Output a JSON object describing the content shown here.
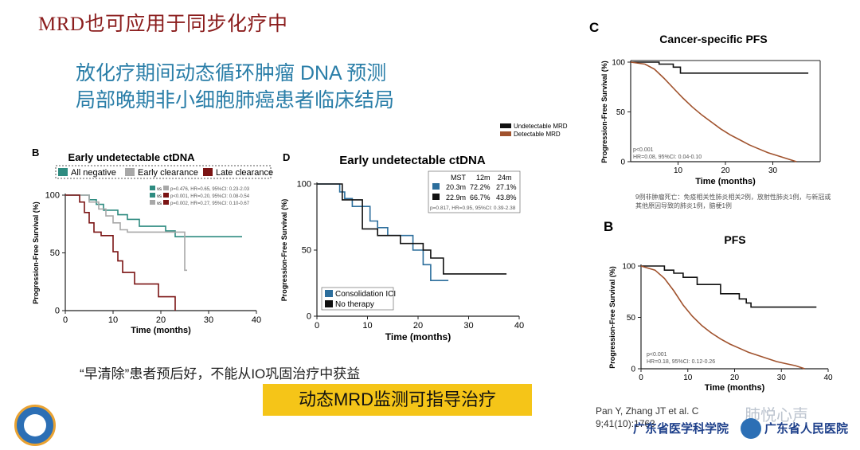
{
  "slide": {
    "title": "MRD也可应用于同步化疗中",
    "headline_line1": "放化疗期间动态循环肿瘤 DNA 预测",
    "headline_line2": "局部晚期非小细胞肺癌患者临床结局",
    "conclusion": "“早清除”患者预后好，不能从IO巩固治疗中获益",
    "highlight": "动态MRD监测可指导治疗",
    "citation_line1": "Pan Y, Zhang JT et al. C",
    "citation_line2": "9;41(10):1763",
    "academy_name": "广东省医学科学院",
    "hospital_name": "广东省人民医院",
    "watermark": "肺悦心声",
    "accent_color": "#2a7ea8",
    "highlight_color": "#f5c518"
  },
  "chart_data": [
    {
      "panel": "B",
      "type": "line",
      "title": "Early undetectable ctDNA",
      "xlabel": "Time (months)",
      "ylabel": "Progression-Free Survival (%)",
      "xlim": [
        0,
        40
      ],
      "ylim": [
        0,
        100
      ],
      "xticks": [
        "0",
        "10",
        "20",
        "30",
        "40"
      ],
      "yticks": [
        "0",
        "50",
        "100"
      ],
      "legend_position": "top",
      "stats": [
        {
          "vs": "vs",
          "text": "p=0.476, HR=0.65, 95%CI: 0.23-2.03",
          "color": "#2e8b80"
        },
        {
          "vs": "vs",
          "text": "p<0.001, HR=0.20, 95%CI: 0.08-0.54",
          "color": "#7b1414"
        },
        {
          "vs": "vs",
          "text": "p=0.002, HR=0.27, 95%CI: 0.10-0.67",
          "color": "#7b1414"
        }
      ],
      "series": [
        {
          "name": "All negative",
          "color": "#2e8b80",
          "x": [
            0,
            5,
            5,
            6.5,
            6.5,
            8,
            8,
            11,
            11,
            13,
            13,
            15.5,
            15.5,
            21,
            21,
            23,
            23,
            37
          ],
          "y": [
            100,
            100,
            96,
            96,
            92,
            92,
            87,
            87,
            83,
            83,
            79,
            79,
            73,
            73,
            69,
            69,
            64,
            64
          ]
        },
        {
          "name": "Early clearance",
          "color": "#a8a8a8",
          "x": [
            0,
            5,
            5,
            7,
            7,
            8.5,
            8.5,
            10,
            10,
            11.5,
            11.5,
            13,
            13,
            20,
            20,
            25,
            25,
            25.5
          ],
          "y": [
            100,
            100,
            94,
            94,
            88,
            88,
            82,
            82,
            76,
            76,
            70,
            70,
            68,
            68,
            68,
            68,
            35,
            35
          ]
        },
        {
          "name": "Late clearance",
          "color": "#7b1414",
          "x": [
            0,
            3,
            3,
            4,
            4,
            5,
            5,
            6,
            6,
            7.5,
            7.5,
            10,
            10,
            11,
            11,
            12,
            12,
            14.5,
            14.5,
            19.5,
            19.5,
            23,
            23
          ],
          "y": [
            100,
            100,
            94,
            94,
            85,
            85,
            76,
            76,
            68,
            68,
            65,
            65,
            51,
            51,
            43,
            43,
            33,
            33,
            23,
            23,
            12,
            12,
            0
          ]
        }
      ]
    },
    {
      "panel": "D",
      "type": "line",
      "title": "Early undetectable ctDNA",
      "xlabel": "Time (months)",
      "ylabel": "Progression-Free Survival (%)",
      "xlim": [
        0,
        40
      ],
      "ylim": [
        0,
        100
      ],
      "xticks": [
        "0",
        "10",
        "20",
        "30",
        "40"
      ],
      "yticks": [
        "0",
        "50",
        "100"
      ],
      "legend_position": "bottom-left",
      "table_header": [
        "MST",
        "12m",
        "24m"
      ],
      "table_rows": [
        {
          "color": "#2c6e9c",
          "values": [
            "20.3m",
            "72.2%",
            "27.1%"
          ]
        },
        {
          "color": "#111111",
          "values": [
            "22.9m",
            "66.7%",
            "43.8%"
          ]
        }
      ],
      "table_footer": "p=0.817, HR=0.95, 95%CI: 0.39-2.38",
      "series": [
        {
          "name": "Consolidation ICI",
          "color": "#2c6e9c",
          "x": [
            0,
            4.5,
            4.5,
            5.5,
            5.5,
            7,
            7,
            10.5,
            10.5,
            12,
            12,
            14,
            14,
            19,
            19,
            21,
            21,
            22.5,
            22.5,
            26
          ],
          "y": [
            100,
            100,
            94,
            94,
            89,
            89,
            83,
            83,
            72,
            72,
            67,
            67,
            61,
            61,
            50,
            50,
            39,
            39,
            27,
            27
          ]
        },
        {
          "name": "No therapy",
          "color": "#111111",
          "x": [
            0,
            5,
            5,
            9,
            9,
            12,
            12,
            16.5,
            16.5,
            21,
            21,
            22.5,
            22.5,
            25,
            25,
            37.5
          ],
          "y": [
            100,
            100,
            88,
            88,
            66,
            66,
            61,
            61,
            55,
            55,
            50,
            50,
            44,
            44,
            32,
            32
          ]
        }
      ]
    },
    {
      "panel": "C",
      "type": "line",
      "title": "Cancer-specific PFS",
      "xlabel": "Time (months)",
      "ylabel": "Progression-Free Survival (%)",
      "xlim": [
        0,
        40
      ],
      "ylim": [
        0,
        100
      ],
      "xticks": [
        "10",
        "20",
        "30"
      ],
      "yticks": [
        "0",
        "50",
        "100"
      ],
      "legend_position": "right",
      "stats_text": [
        "p<0.001",
        "HR=0.08, 95%CI: 0.04-0.10"
      ],
      "note": "9例非肿瘤死亡：免疫相关性肺炎相关2例，放射性肺炎1例，与新冠或其他原因导致的肺炎1例，脑梗1例",
      "series": [
        {
          "name": "Undetectable MRD",
          "color": "#111111",
          "x": [
            0,
            6,
            6,
            9,
            9,
            10.5,
            10.5,
            37.5
          ],
          "y": [
            100,
            100,
            98,
            98,
            95,
            95,
            89,
            89
          ]
        },
        {
          "name": "Detectable MRD",
          "color": "#a0522d",
          "x": [
            0,
            3,
            5,
            7,
            9,
            11,
            13,
            15,
            17,
            19,
            21,
            23,
            25,
            27,
            29,
            31,
            33,
            35
          ],
          "y": [
            100,
            98,
            93,
            84,
            74,
            64,
            55,
            47,
            40,
            33,
            27,
            22,
            17,
            13,
            9,
            6,
            3,
            0
          ]
        }
      ]
    },
    {
      "panel": "B",
      "type": "line",
      "title": "PFS",
      "xlabel": "Time (months)",
      "ylabel": "Progression-Free Survival (%)",
      "xlim": [
        0,
        40
      ],
      "ylim": [
        0,
        100
      ],
      "xticks": [
        "0",
        "10",
        "20",
        "30",
        "40"
      ],
      "yticks": [
        "0",
        "50",
        "100"
      ],
      "stats_text": [
        "p<0.001",
        "HR=0.18, 95%CI: 0.12-0.26"
      ],
      "series": [
        {
          "color": "#111111",
          "x": [
            0,
            5,
            5,
            7,
            7,
            9,
            9,
            12,
            12,
            17,
            17,
            21,
            21,
            22.5,
            22.5,
            23.5,
            23.5,
            37.5
          ],
          "y": [
            100,
            100,
            96,
            96,
            93,
            93,
            89,
            89,
            82,
            82,
            73,
            73,
            68,
            68,
            64,
            64,
            60,
            60
          ]
        },
        {
          "color": "#a0522d",
          "x": [
            0,
            3,
            5,
            7,
            9,
            11,
            13,
            15,
            17,
            19,
            21,
            23,
            25,
            27,
            29,
            31,
            33,
            35
          ],
          "y": [
            100,
            96,
            88,
            76,
            62,
            51,
            42,
            35,
            29,
            24,
            20,
            16,
            13,
            10,
            7,
            5,
            3,
            0
          ]
        }
      ]
    }
  ]
}
